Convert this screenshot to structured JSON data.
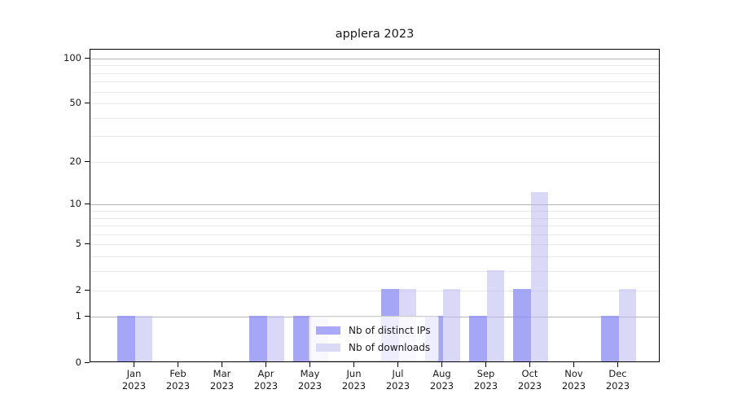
{
  "title": "applera 2023",
  "chart_data": {
    "type": "bar",
    "title": "applera 2023",
    "categories": [
      "Jan 2023",
      "Feb 2023",
      "Mar 2023",
      "Apr 2023",
      "May 2023",
      "Jun 2023",
      "Jul 2023",
      "Aug 2023",
      "Sep 2023",
      "Oct 2023",
      "Nov 2023",
      "Dec 2023"
    ],
    "series": [
      {
        "name": "Nb of distinct IPs",
        "color": "#a9a9f7",
        "fill": "rgba(141,141,244,0.78)",
        "values": [
          1,
          0,
          0,
          1,
          1,
          0,
          2,
          1,
          1,
          2,
          0,
          1
        ]
      },
      {
        "name": "Nb of downloads",
        "color": "#dadaf7",
        "fill": "rgba(188,188,240,0.56)",
        "values": [
          1,
          0,
          0,
          1,
          1,
          0,
          2,
          2,
          3,
          12,
          0,
          2
        ]
      }
    ],
    "yscale": "log1p",
    "ylim": [
      0,
      114
    ],
    "yticks": [
      0,
      1,
      2,
      5,
      10,
      20,
      50,
      100
    ],
    "major_gridlines": [
      1,
      10,
      100
    ],
    "light_gridlines": [
      2,
      5,
      20,
      50
    ],
    "minor_gridlines": [
      3,
      4,
      6,
      7,
      8,
      9,
      30,
      40,
      60,
      70,
      80,
      90
    ],
    "grid": true,
    "xlabel": "",
    "ylabel": "",
    "legend_position": "lower-center-inside"
  },
  "colors": {
    "grid_major": "#b3b3b3",
    "grid_minor": "#e9e9e9",
    "axis": "#000000",
    "text": "#1a1a1a",
    "background": "#ffffff",
    "legend_border": "#cccccc"
  }
}
